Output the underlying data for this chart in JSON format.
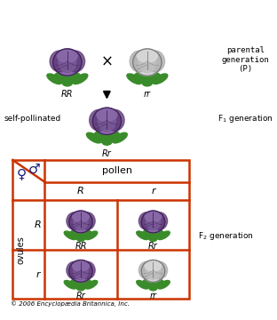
{
  "credit": "© 2006 Encyclopædia Britannica, Inc.",
  "bg_color": "#ffffff",
  "orange_border": "#cc3300",
  "purple_main": "#8b6aaa",
  "purple_mid": "#7a5a99",
  "purple_dark": "#5a3575",
  "purple_line": "#3d2055",
  "white_main": "#d8d8d8",
  "white_mid": "#c0c0c0",
  "white_line": "#777777",
  "green_color": "#3a8c2a",
  "green_dark": "#2a6020",
  "label_RR": "RR",
  "label_rr": "rr",
  "label_Rr": "Rr",
  "label_self_pollinated": "self-pollinated",
  "label_parental": "parental\ngeneration\n(P)",
  "label_F1": "F$_1$ generation",
  "label_F2": "F$_2$ generation",
  "label_pollen": "pollen",
  "label_ovules": "ovules",
  "label_R_pollen": "R",
  "label_r_pollen": "r",
  "label_R_ovule": "R",
  "label_r_ovule": "r",
  "grid_labels": [
    [
      "RR",
      "Rr"
    ],
    [
      "Rr",
      "rr"
    ]
  ],
  "male_symbol": "♂",
  "female_symbol": "♀",
  "cross_symbol": "×",
  "navy": "#1a1a7a"
}
